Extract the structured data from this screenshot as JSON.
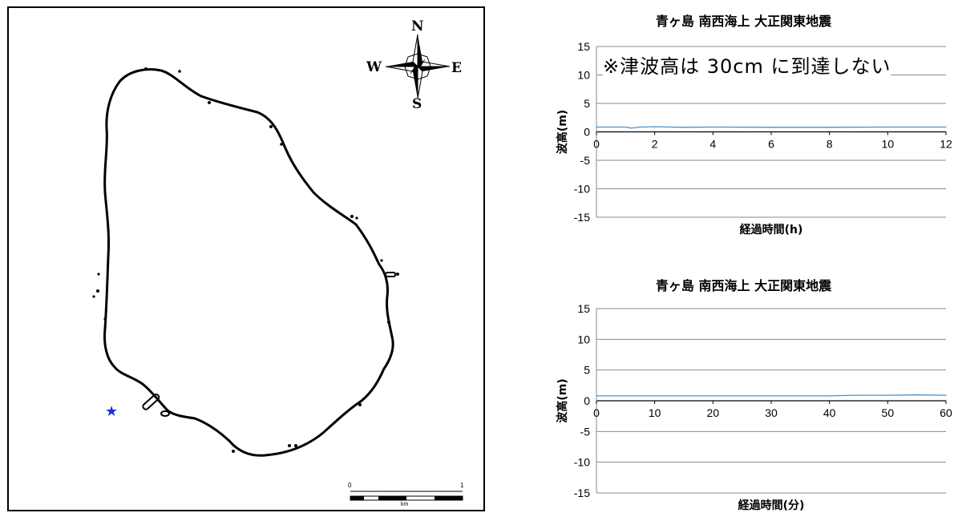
{
  "map": {
    "compass": {
      "n": "N",
      "e": "E",
      "s": "S",
      "w": "W"
    },
    "scale": {
      "start": "0",
      "end": "1",
      "unit": "km"
    },
    "marker_color": "#1f2fd0",
    "marker_glyph": "★"
  },
  "chart_data": [
    {
      "type": "line",
      "title": "青ヶ島 南西海上 大正関東地震",
      "xlabel": "経過時間(h)",
      "ylabel": "波高(m)",
      "xlim": [
        0,
        12
      ],
      "ylim": [
        -15,
        15
      ],
      "xticks": [
        "0",
        "2",
        "4",
        "6",
        "8",
        "10",
        "12"
      ],
      "yticks": [
        "15",
        "10",
        "5",
        "0",
        "-5",
        "-10",
        "-15"
      ],
      "grid": "horizontal",
      "annotation": "※津波高は 30cm に到達しない",
      "series_color": "#4a90c8",
      "x": [
        0,
        1,
        1.2,
        1.5,
        2,
        3,
        4,
        6,
        8,
        10,
        12
      ],
      "values": [
        0.85,
        0.85,
        0.65,
        0.85,
        0.9,
        0.8,
        0.85,
        0.8,
        0.8,
        0.85,
        0.85
      ]
    },
    {
      "type": "line",
      "title": "青ヶ島 南西海上 大正関東地震",
      "xlabel": "経過時間(分)",
      "ylabel": "波高(m)",
      "xlim": [
        0,
        60
      ],
      "ylim": [
        -15,
        15
      ],
      "xticks": [
        "0",
        "10",
        "20",
        "30",
        "40",
        "50",
        "60"
      ],
      "yticks": [
        "15",
        "10",
        "5",
        "0",
        "-5",
        "-10",
        "-15"
      ],
      "grid": "horizontal",
      "series_color": "#4a90c8",
      "x": [
        0,
        10,
        20,
        30,
        40,
        42,
        45,
        50,
        55,
        60
      ],
      "values": [
        0.8,
        0.8,
        0.8,
        0.8,
        0.8,
        0.85,
        0.9,
        0.9,
        0.95,
        0.9
      ]
    }
  ]
}
